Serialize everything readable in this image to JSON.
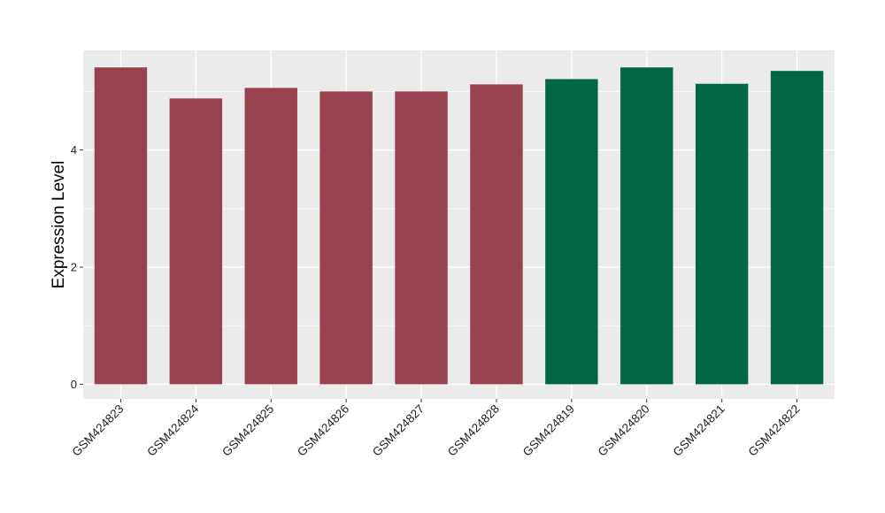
{
  "chart_data": {
    "type": "bar",
    "title": "",
    "xlabel": "",
    "ylabel": "Expression Level",
    "ylim": [
      -0.25,
      5.7
    ],
    "yticks": [
      0,
      2,
      4
    ],
    "grid": true,
    "categories": [
      "GSM424823",
      "GSM424824",
      "GSM424825",
      "GSM424826",
      "GSM424827",
      "GSM424828",
      "GSM424819",
      "GSM424820",
      "GSM424821",
      "GSM424822"
    ],
    "values": [
      5.41,
      4.88,
      5.06,
      5.0,
      5.0,
      5.12,
      5.21,
      5.41,
      5.13,
      5.35
    ],
    "bar_colors": [
      "#99424F",
      "#99424F",
      "#99424F",
      "#99424F",
      "#99424F",
      "#99424F",
      "#006644",
      "#006644",
      "#006644",
      "#006644"
    ],
    "panel_background": "#EBEBEB",
    "grid_color": "#FFFFFF",
    "tick_color": "#333333"
  }
}
